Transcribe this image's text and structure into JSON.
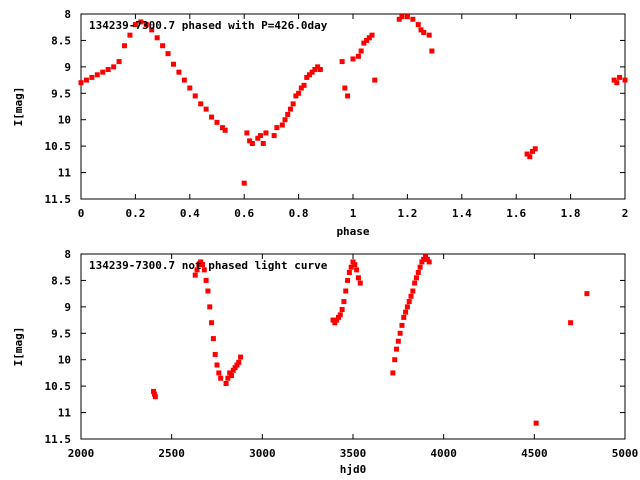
{
  "colors": {
    "points": "#ff0000",
    "axes": "#000000",
    "background": "#ffffff"
  },
  "chart_data": [
    {
      "type": "scatter",
      "title": "134239-7300.7 phased with P=426.0day",
      "xlabel": "phase",
      "ylabel": "I[mag]",
      "xlim": [
        0,
        2
      ],
      "ylim": [
        8,
        11.5
      ],
      "y_inverted": true,
      "grid": false,
      "xticks": [
        "0",
        "0.2",
        "0.4",
        "0.6",
        "0.8",
        "1",
        "1.2",
        "1.4",
        "1.6",
        "1.8",
        "2"
      ],
      "yticks": [
        "8",
        "8.5",
        "9",
        "9.5",
        "10",
        "10.5",
        "11",
        "11.5"
      ],
      "series": [
        {
          "x": [
            0.0,
            0.02,
            0.04,
            0.06,
            0.08,
            0.1,
            0.12,
            0.14,
            0.16,
            0.18,
            0.2,
            0.22,
            0.24,
            0.26,
            0.28,
            0.3,
            0.32,
            0.34,
            0.36,
            0.38,
            0.4,
            0.42,
            0.44,
            0.46,
            0.48,
            0.5,
            0.52,
            0.53,
            0.6,
            0.61,
            0.62,
            0.63,
            0.65,
            0.66,
            0.67,
            0.68,
            0.71,
            0.72,
            0.74,
            0.75,
            0.76,
            0.77,
            0.78,
            0.79,
            0.8,
            0.81,
            0.82,
            0.83,
            0.84,
            0.85,
            0.86,
            0.87,
            0.88,
            0.96,
            0.97,
            0.98,
            1.0,
            1.02,
            1.03,
            1.04,
            1.05,
            1.06,
            1.07,
            1.08,
            1.17,
            1.18,
            1.2,
            1.22,
            1.24,
            1.25,
            1.26,
            1.28,
            1.29,
            1.64,
            1.65,
            1.66,
            1.67,
            1.96,
            1.97,
            1.98,
            2.0
          ],
          "y": [
            9.3,
            9.25,
            9.2,
            9.15,
            9.1,
            9.05,
            9.0,
            8.9,
            8.6,
            8.4,
            8.2,
            8.15,
            8.2,
            8.3,
            8.45,
            8.6,
            8.75,
            8.95,
            9.1,
            9.25,
            9.4,
            9.55,
            9.7,
            9.8,
            9.95,
            10.05,
            10.15,
            10.2,
            11.2,
            10.25,
            10.4,
            10.45,
            10.35,
            10.3,
            10.45,
            10.25,
            10.3,
            10.15,
            10.1,
            10.0,
            9.9,
            9.8,
            9.7,
            9.55,
            9.5,
            9.4,
            9.35,
            9.2,
            9.15,
            9.1,
            9.05,
            9.0,
            9.05,
            8.9,
            9.4,
            9.55,
            8.85,
            8.8,
            8.7,
            8.55,
            8.5,
            8.45,
            8.4,
            9.25,
            8.1,
            8.05,
            8.05,
            8.1,
            8.2,
            8.3,
            8.35,
            8.4,
            8.7,
            10.65,
            10.7,
            10.6,
            10.55,
            9.25,
            9.3,
            9.2,
            9.25
          ]
        }
      ]
    },
    {
      "type": "scatter",
      "title": "134239-7300.7 not phased light curve",
      "xlabel": "hjd0",
      "ylabel": "I[mag]",
      "xlim": [
        2000,
        5000
      ],
      "ylim": [
        8,
        11.5
      ],
      "y_inverted": true,
      "grid": false,
      "xticks": [
        "2000",
        "2500",
        "3000",
        "3500",
        "4000",
        "4500",
        "5000"
      ],
      "yticks": [
        "8",
        "8.5",
        "9",
        "9.5",
        "10",
        "10.5",
        "11",
        "11.5"
      ],
      "series": [
        {
          "x": [
            2400,
            2405,
            2410,
            2630,
            2640,
            2650,
            2660,
            2670,
            2680,
            2690,
            2700,
            2710,
            2720,
            2730,
            2740,
            2750,
            2760,
            2770,
            2800,
            2810,
            2820,
            2830,
            2840,
            2850,
            2860,
            2870,
            2880,
            3390,
            3400,
            3410,
            3420,
            3430,
            3440,
            3450,
            3460,
            3470,
            3480,
            3490,
            3500,
            3510,
            3520,
            3530,
            3540,
            3720,
            3730,
            3740,
            3750,
            3760,
            3770,
            3780,
            3790,
            3800,
            3810,
            3820,
            3830,
            3840,
            3850,
            3860,
            3870,
            3880,
            3890,
            3900,
            3910,
            3920,
            4510,
            4700,
            4790
          ],
          "y": [
            10.6,
            10.65,
            10.7,
            8.4,
            8.3,
            8.2,
            8.15,
            8.2,
            8.3,
            8.5,
            8.7,
            9.0,
            9.3,
            9.6,
            9.9,
            10.1,
            10.25,
            10.35,
            10.45,
            10.35,
            10.25,
            10.3,
            10.2,
            10.15,
            10.1,
            10.05,
            9.95,
            9.25,
            9.3,
            9.25,
            9.2,
            9.15,
            9.05,
            8.9,
            8.7,
            8.5,
            8.35,
            8.25,
            8.15,
            8.2,
            8.3,
            8.45,
            8.55,
            10.25,
            10.0,
            9.8,
            9.65,
            9.5,
            9.35,
            9.2,
            9.1,
            9.0,
            8.9,
            8.8,
            8.7,
            8.55,
            8.45,
            8.35,
            8.25,
            8.15,
            8.1,
            8.05,
            8.1,
            8.15,
            11.2,
            9.3,
            8.75
          ]
        }
      ]
    }
  ]
}
